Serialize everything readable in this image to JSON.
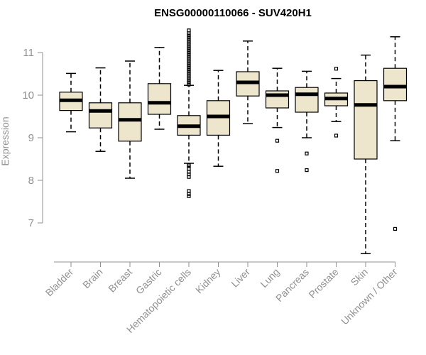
{
  "chart_data": {
    "type": "boxplot",
    "title": "ENSG00000110066 - SUV420H1",
    "xlabel": "",
    "ylabel": "Expression",
    "ylim": [
      6.1,
      11.7
    ],
    "yticks": [
      7,
      8,
      9,
      10,
      11
    ],
    "colors": {
      "box_fill": "#EDE6CC",
      "axis": "#909090"
    },
    "categories": [
      "Bladder",
      "Brain",
      "Breast",
      "Gastric",
      "Hematopoietic cells",
      "Kidney",
      "Liver",
      "Lung",
      "Pancreas",
      "Prostate",
      "Skin",
      "Unknown / Other"
    ],
    "boxes": [
      {
        "label": "Bladder",
        "whisker_low": 9.14,
        "q1": 9.64,
        "median": 9.88,
        "q3": 10.07,
        "whisker_high": 10.51,
        "outliers": []
      },
      {
        "label": "Brain",
        "whisker_low": 8.68,
        "q1": 9.23,
        "median": 9.63,
        "q3": 9.82,
        "whisker_high": 10.64,
        "outliers": []
      },
      {
        "label": "Breast",
        "whisker_low": 8.05,
        "q1": 8.92,
        "median": 9.42,
        "q3": 9.82,
        "whisker_high": 10.8,
        "outliers": []
      },
      {
        "label": "Gastric",
        "whisker_low": 9.2,
        "q1": 9.55,
        "median": 9.82,
        "q3": 10.27,
        "whisker_high": 11.12,
        "outliers": []
      },
      {
        "label": "Hematopoietic cells",
        "whisker_low": 8.4,
        "q1": 9.06,
        "median": 9.27,
        "q3": 9.52,
        "whisker_high": 10.23,
        "outliers": [
          7.63,
          7.68,
          7.75,
          8.08,
          8.14,
          8.2,
          8.27,
          8.33,
          8.36,
          10.25,
          10.3,
          10.35,
          10.4,
          10.45,
          10.5,
          10.55,
          10.6,
          10.65,
          10.7,
          10.75,
          10.8,
          10.85,
          10.9,
          10.95,
          11.0,
          11.05,
          11.1,
          11.15,
          11.2,
          11.25,
          11.3,
          11.35,
          11.4,
          11.45,
          11.52
        ]
      },
      {
        "label": "Kidney",
        "whisker_low": 8.33,
        "q1": 9.06,
        "median": 9.5,
        "q3": 9.87,
        "whisker_high": 10.58,
        "outliers": []
      },
      {
        "label": "Liver",
        "whisker_low": 9.33,
        "q1": 9.98,
        "median": 10.3,
        "q3": 10.55,
        "whisker_high": 11.27,
        "outliers": []
      },
      {
        "label": "Lung",
        "whisker_low": 9.24,
        "q1": 9.7,
        "median": 10.0,
        "q3": 10.1,
        "whisker_high": 10.63,
        "outliers": [
          8.22,
          8.93
        ]
      },
      {
        "label": "Pancreas",
        "whisker_low": 9.0,
        "q1": 9.6,
        "median": 10.02,
        "q3": 10.18,
        "whisker_high": 10.56,
        "outliers": [
          8.24,
          8.63
        ]
      },
      {
        "label": "Prostate",
        "whisker_low": 9.38,
        "q1": 9.75,
        "median": 9.92,
        "q3": 10.05,
        "whisker_high": 10.39,
        "outliers": [
          9.05,
          10.62
        ]
      },
      {
        "label": "Skin",
        "whisker_low": 6.28,
        "q1": 8.5,
        "median": 9.77,
        "q3": 10.34,
        "whisker_high": 10.94,
        "outliers": []
      },
      {
        "label": "Unknown / Other",
        "whisker_low": 8.93,
        "q1": 9.87,
        "median": 10.2,
        "q3": 10.63,
        "whisker_high": 11.37,
        "outliers": [
          6.86
        ]
      }
    ]
  }
}
